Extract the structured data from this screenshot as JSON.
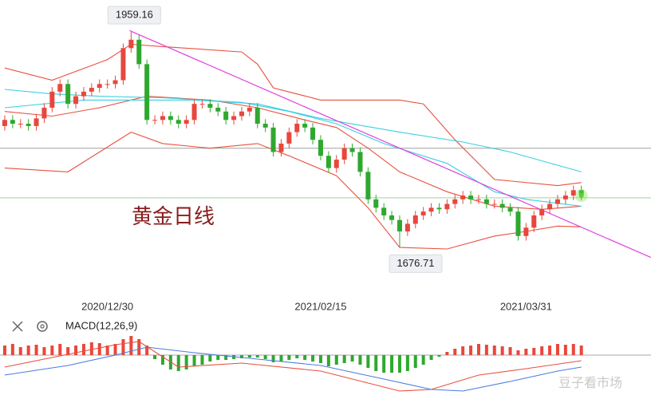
{
  "toolbar": {
    "macd_label": "MACD(12,26,9)"
  },
  "watermark": "豆子看市场",
  "chart_data": {
    "type": "candlestick",
    "title": "黄金日线",
    "categories": [
      null,
      null,
      null,
      null,
      null,
      null,
      null,
      null,
      null,
      null,
      null,
      null,
      null,
      "2020/12/30",
      null,
      null,
      null,
      null,
      null,
      null,
      null,
      null,
      null,
      null,
      null,
      null,
      null,
      null,
      null,
      null,
      null,
      null,
      null,
      null,
      null,
      null,
      null,
      null,
      null,
      null,
      "2021/02/15",
      null,
      null,
      null,
      null,
      null,
      null,
      null,
      null,
      null,
      null,
      null,
      null,
      null,
      null,
      null,
      null,
      null,
      null,
      null,
      null,
      null,
      null,
      null,
      null,
      null,
      "2021/03/31",
      null,
      null,
      null,
      null,
      null,
      null,
      null
    ],
    "open": [
      1836,
      1844,
      1839,
      1839,
      1836,
      1846,
      1860,
      1881,
      1891,
      1865,
      1875,
      1881,
      1886,
      1891,
      1891,
      1896,
      1938,
      1949,
      1917,
      1844,
      1844,
      1849,
      1844,
      1839,
      1844,
      1865,
      1865,
      1860,
      1855,
      1844,
      1849,
      1855,
      1860,
      1839,
      1834,
      1802,
      1813,
      1828,
      1839,
      1834,
      1818,
      1797,
      1781,
      1792,
      1807,
      1802,
      1776,
      1740,
      1729,
      1719,
      1713,
      1698,
      1708,
      1719,
      1724,
      1729,
      1727,
      1734,
      1740,
      1745,
      1740,
      1740,
      1734,
      1734,
      1729,
      1724,
      1692,
      1703,
      1719,
      1727,
      1734,
      1740,
      1745,
      1752
    ],
    "high": [
      1850,
      1850,
      1845,
      1845,
      1852,
      1866,
      1887,
      1897,
      1897,
      1881,
      1887,
      1892,
      1897,
      1897,
      1902,
      1944,
      1959.16,
      1955,
      1923,
      1850,
      1855,
      1855,
      1850,
      1850,
      1871,
      1871,
      1871,
      1866,
      1861,
      1855,
      1861,
      1866,
      1866,
      1845,
      1840,
      1819,
      1834,
      1845,
      1845,
      1840,
      1824,
      1803,
      1798,
      1813,
      1813,
      1808,
      1782,
      1746,
      1735,
      1725,
      1719,
      1714,
      1725,
      1730,
      1735,
      1735,
      1740,
      1746,
      1751,
      1751,
      1746,
      1746,
      1740,
      1740,
      1735,
      1730,
      1709,
      1725,
      1733,
      1740,
      1746,
      1751,
      1758,
      1758
    ],
    "low": [
      1830,
      1833,
      1833,
      1830,
      1830,
      1840,
      1854,
      1875,
      1859,
      1859,
      1869,
      1875,
      1880,
      1885,
      1885,
      1890,
      1932,
      1911,
      1838,
      1838,
      1838,
      1838,
      1833,
      1833,
      1838,
      1859,
      1854,
      1849,
      1838,
      1838,
      1843,
      1849,
      1833,
      1828,
      1796,
      1796,
      1807,
      1822,
      1828,
      1812,
      1791,
      1775,
      1775,
      1786,
      1796,
      1770,
      1734,
      1723,
      1713,
      1707,
      1676.71,
      1692,
      1702,
      1713,
      1718,
      1721,
      1721,
      1728,
      1734,
      1734,
      1734,
      1728,
      1728,
      1723,
      1718,
      1686,
      1686,
      1697,
      1713,
      1721,
      1728,
      1734,
      1739,
      1739
    ],
    "close": [
      1844,
      1839,
      1839,
      1836,
      1846,
      1860,
      1881,
      1891,
      1865,
      1875,
      1881,
      1886,
      1891,
      1891,
      1896,
      1938,
      1949,
      1917,
      1844,
      1844,
      1849,
      1844,
      1839,
      1844,
      1865,
      1865,
      1860,
      1855,
      1844,
      1849,
      1855,
      1860,
      1839,
      1834,
      1802,
      1813,
      1828,
      1839,
      1834,
      1818,
      1797,
      1781,
      1792,
      1807,
      1802,
      1776,
      1740,
      1729,
      1719,
      1713,
      1698,
      1708,
      1719,
      1724,
      1729,
      1727,
      1734,
      1740,
      1745,
      1740,
      1740,
      1734,
      1734,
      1729,
      1724,
      1692,
      1703,
      1719,
      1727,
      1734,
      1740,
      1745,
      1752,
      1745
    ],
    "up_color": "#e8473c",
    "down_color": "#2ea82e",
    "xlim": [
      -0.6,
      81.82
    ],
    "ylim": [
      1604,
      2001
    ],
    "hlines": [
      {
        "value": 1807,
        "color": "#a0a0a0"
      },
      {
        "value": 1742,
        "color": "#9bd89b"
      }
    ],
    "lines": [
      {
        "color": "#e8513f",
        "x": [
          0,
          6,
          13,
          16,
          20,
          30,
          32,
          34,
          40,
          50,
          53,
          57,
          62,
          70,
          73
        ],
        "values": [
          1912,
          1896,
          1923,
          1943,
          1940,
          1933,
          1917,
          1886,
          1870,
          1870,
          1865,
          1818,
          1766,
          1758,
          1762
        ]
      },
      {
        "color": "#e8513f",
        "x": [
          0,
          6,
          12,
          18,
          26,
          32,
          38,
          42,
          46,
          50,
          56,
          62,
          68,
          73
        ],
        "values": [
          1855,
          1849,
          1860,
          1875,
          1870,
          1860,
          1844,
          1834,
          1807,
          1776,
          1750,
          1731,
          1727,
          1731
        ]
      },
      {
        "color": "#e8513f",
        "x": [
          0,
          8,
          12,
          16,
          20,
          26,
          32,
          36,
          42,
          46,
          50,
          56,
          62,
          66,
          70,
          73
        ],
        "values": [
          1781,
          1776,
          1802,
          1828,
          1813,
          1807,
          1813,
          1797,
          1771,
          1729,
          1677,
          1675,
          1692,
          1698,
          1705,
          1704
        ]
      },
      {
        "color": "#3ccfe0",
        "x": [
          0,
          6,
          12,
          20,
          30,
          36,
          42,
          48,
          56,
          62,
          66,
          73
        ],
        "values": [
          1884,
          1878,
          1875,
          1873,
          1867,
          1855,
          1839,
          1813,
          1787,
          1750,
          1740,
          1731
        ]
      },
      {
        "color": "#3ccfe0",
        "x": [
          0,
          10,
          24,
          32,
          40,
          50,
          58,
          64,
          73
        ],
        "values": [
          1860,
          1870,
          1870,
          1865,
          1846,
          1828,
          1815,
          1802,
          1776
        ]
      }
    ],
    "trendline": {
      "color": "#e040e0",
      "x": [
        15.8,
        81.8
      ],
      "values": [
        1961,
        1664
      ]
    },
    "macd": {
      "ylim": [
        -55,
        25
      ],
      "hist": [
        12,
        14,
        10,
        12,
        13,
        10,
        12,
        14,
        10,
        12,
        14,
        16,
        15,
        12,
        14,
        20,
        24,
        20,
        12,
        -5,
        -12,
        -18,
        -20,
        -18,
        -14,
        -12,
        -8,
        -6,
        -6,
        -5,
        -4,
        -3,
        -3,
        -5,
        -9,
        -8,
        -6,
        -4,
        -6,
        -8,
        -10,
        -14,
        -12,
        -10,
        -8,
        -12,
        -16,
        -20,
        -22,
        -22,
        -22,
        -20,
        -16,
        -12,
        -6,
        -2,
        4,
        8,
        11,
        12,
        14,
        13,
        12,
        11,
        10,
        6,
        8,
        9,
        11,
        12,
        14,
        13,
        14,
        12
      ],
      "lines": [
        {
          "color": "#e8513f",
          "x": [
            0,
            14,
            17,
            22,
            30,
            40,
            50,
            54,
            60,
            66,
            73
          ],
          "values": [
            -15,
            13,
            17,
            -15,
            -10,
            -20,
            -45,
            -43,
            -25,
            -17,
            -7
          ]
        },
        {
          "color": "#4a7de0",
          "x": [
            0,
            8,
            14,
            18,
            24,
            32,
            40,
            48,
            54,
            58,
            64,
            70,
            73
          ],
          "values": [
            -25,
            -13,
            0,
            10,
            3,
            -5,
            -13,
            -30,
            -43,
            -45,
            -33,
            -20,
            -15
          ]
        }
      ]
    }
  }
}
